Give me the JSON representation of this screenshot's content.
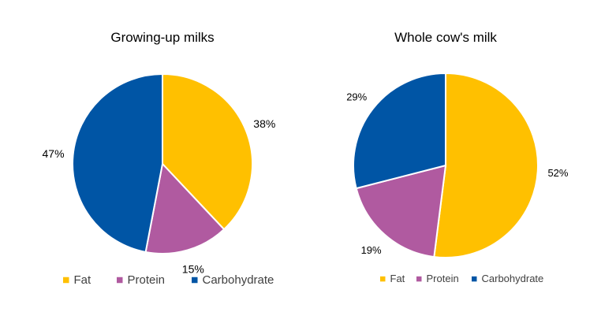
{
  "chart_data": [
    {
      "type": "pie",
      "title": "Growing-up milks",
      "categories": [
        "Fat",
        "Protein",
        "Carbohydrate"
      ],
      "values": [
        38,
        15,
        47
      ],
      "labels": [
        "38%",
        "15%",
        "47%"
      ],
      "colors": [
        "#FFC000",
        "#B05AA0",
        "#0055A5"
      ],
      "legend": "bottom"
    },
    {
      "type": "pie",
      "title": "Whole cow's milk",
      "categories": [
        "Fat",
        "Protein",
        "Carbohydrate"
      ],
      "values": [
        52,
        19,
        29
      ],
      "labels": [
        "52%",
        "19%",
        "29%"
      ],
      "colors": [
        "#FFC000",
        "#B05AA0",
        "#0055A5"
      ],
      "legend": "bottom"
    }
  ]
}
